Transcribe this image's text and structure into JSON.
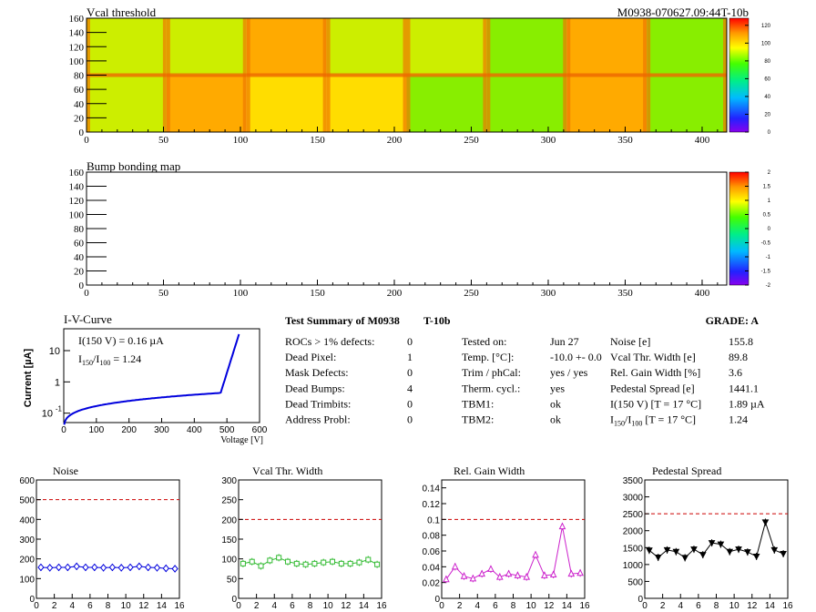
{
  "module_id": "M0938-070627.09:44T-10b",
  "maps": {
    "vcal": {
      "title": "Vcal threshold",
      "y_ticks": [
        "0",
        "20",
        "40",
        "60",
        "80",
        "100",
        "120",
        "140",
        "160"
      ],
      "x_ticks": [
        "0",
        "50",
        "100",
        "150",
        "200",
        "250",
        "300",
        "350",
        "400"
      ],
      "color_ticks": [
        "0",
        "20",
        "40",
        "60",
        "80",
        "100",
        "120"
      ],
      "roc_mean_threshold": [
        80,
        90,
        120,
        85,
        80,
        70,
        110,
        70,
        85,
        115,
        95,
        105,
        60,
        65,
        110,
        65
      ]
    },
    "bump": {
      "title": "Bump bonding map",
      "y_ticks": [
        "0",
        "20",
        "40",
        "60",
        "80",
        "100",
        "120",
        "140",
        "160"
      ],
      "x_ticks": [
        "0",
        "50",
        "100",
        "150",
        "200",
        "250",
        "300",
        "350",
        "400"
      ],
      "color_ticks": [
        "-2",
        "-1.5",
        "-1",
        "-0.5",
        "0",
        "0.5",
        "1",
        "1.5",
        "2"
      ]
    }
  },
  "iv": {
    "title": "I-V-Curve",
    "ylabel": "Current [µA]",
    "xlabel": "Voltage [V]",
    "x_ticks": [
      "0",
      "100",
      "200",
      "300",
      "400",
      "500",
      "600"
    ],
    "y_ticks": [
      "10",
      "1"
    ],
    "y_tick_10m1": "10",
    "y_tick_exp": "-1",
    "note1": "I(150 V) = 0.16 µA",
    "note2_a": "I",
    "note2_sub1": "150",
    "note2_b": "/I",
    "note2_sub2": "100",
    "note2_c": " =  1.24"
  },
  "summary": {
    "title": "Test Summary of M0938",
    "tag": "T-10b",
    "grade": "GRADE:  A",
    "left": [
      {
        "label": "ROCs > 1% defects:",
        "value": "0"
      },
      {
        "label": "Dead Pixel:",
        "value": "1"
      },
      {
        "label": "Mask Defects:",
        "value": "0"
      },
      {
        "label": "Dead Bumps:",
        "value": "4"
      },
      {
        "label": "Dead Trimbits:",
        "value": "0"
      },
      {
        "label": "Address Probl:",
        "value": "0"
      }
    ],
    "mid": [
      {
        "label": "Tested on:",
        "value": "Jun 27"
      },
      {
        "label": "Temp. [°C]:",
        "value": "-10.0 +- 0.0"
      },
      {
        "label": "Trim / phCal:",
        "value": "yes / yes"
      },
      {
        "label": "Therm. cycl.:",
        "value": "yes"
      },
      {
        "label": "TBM1:",
        "value": "ok"
      },
      {
        "label": "TBM2:",
        "value": "ok"
      }
    ],
    "right": [
      {
        "label": "Noise [e]",
        "value": "155.8"
      },
      {
        "label": "Vcal Thr. Width [e]",
        "value": "89.8"
      },
      {
        "label": "Rel. Gain Width [%]",
        "value": "3.6"
      },
      {
        "label": "Pedestal Spread [e]",
        "value": "1441.1"
      },
      {
        "label": "I(150 V) [T = 17 °C]",
        "value": "1.89 µA"
      },
      {
        "label_a": "I",
        "label_sub1": "150",
        "label_b": "/I",
        "label_sub2": "100",
        "label_c": "  [T = 17 °C]",
        "value": "1.24"
      }
    ]
  },
  "chart_data": [
    {
      "type": "line",
      "title": "Noise",
      "x": [
        0,
        1,
        2,
        3,
        4,
        5,
        6,
        7,
        8,
        9,
        10,
        11,
        12,
        13,
        14,
        15
      ],
      "values": [
        157,
        155,
        157,
        157,
        162,
        157,
        157,
        155,
        157,
        155,
        157,
        162,
        157,
        155,
        152,
        150
      ],
      "ylim": [
        0,
        600
      ],
      "xlim": [
        0,
        16
      ],
      "y_ticks": [
        0,
        100,
        200,
        300,
        400,
        500,
        600
      ],
      "x_ticks": [
        0,
        2,
        4,
        6,
        8,
        10,
        12,
        14,
        16
      ],
      "limit": 500,
      "color": "#0000dd",
      "marker": "diamond"
    },
    {
      "type": "line",
      "title": "Vcal Thr. Width",
      "x": [
        0,
        1,
        2,
        3,
        4,
        5,
        6,
        7,
        8,
        9,
        10,
        11,
        12,
        13,
        14,
        15
      ],
      "values": [
        88,
        93,
        82,
        96,
        103,
        93,
        88,
        86,
        88,
        91,
        93,
        88,
        88,
        91,
        98,
        86
      ],
      "ylim": [
        0,
        300
      ],
      "xlim": [
        0,
        16
      ],
      "y_ticks": [
        0,
        50,
        100,
        150,
        200,
        250,
        300
      ],
      "x_ticks": [
        0,
        2,
        4,
        6,
        8,
        10,
        12,
        14,
        16
      ],
      "limit": 200,
      "color": "#33bb33",
      "marker": "square"
    },
    {
      "type": "line",
      "title": "Rel. Gain Width",
      "x": [
        0,
        1,
        2,
        3,
        4,
        5,
        6,
        7,
        8,
        9,
        10,
        11,
        12,
        13,
        14,
        15
      ],
      "values": [
        0.024,
        0.04,
        0.028,
        0.025,
        0.031,
        0.037,
        0.027,
        0.031,
        0.029,
        0.027,
        0.055,
        0.029,
        0.03,
        0.091,
        0.031,
        0.032
      ],
      "ylim": [
        0,
        0.15
      ],
      "xlim": [
        0,
        16
      ],
      "y_ticks": [
        0,
        0.02,
        0.04,
        0.06,
        0.08,
        0.1,
        0.12,
        0.14
      ],
      "y_tick_labels": [
        "0",
        "0.02",
        "0.04",
        "0.06",
        "0.08",
        "0.1",
        "0.12",
        "0.14"
      ],
      "x_ticks": [
        0,
        2,
        4,
        6,
        8,
        10,
        12,
        14,
        16
      ],
      "limit": 0.1,
      "color": "#cc22cc",
      "marker": "triangle"
    },
    {
      "type": "line",
      "title": "Pedestal Spread",
      "x": [
        0,
        1,
        2,
        3,
        4,
        5,
        6,
        7,
        8,
        9,
        10,
        11,
        12,
        13,
        14,
        15
      ],
      "values": [
        1420,
        1210,
        1430,
        1380,
        1200,
        1450,
        1290,
        1640,
        1600,
        1380,
        1450,
        1370,
        1240,
        2250,
        1430,
        1320
      ],
      "ylim": [
        0,
        3500
      ],
      "xlim": [
        0,
        16
      ],
      "y_ticks": [
        0,
        500,
        1000,
        1500,
        2000,
        2500,
        3000,
        3500
      ],
      "x_ticks": [
        0,
        2,
        4,
        6,
        8,
        10,
        12,
        14,
        16
      ],
      "limit": 2500,
      "color": "#000000",
      "marker": "triangle-down"
    }
  ]
}
